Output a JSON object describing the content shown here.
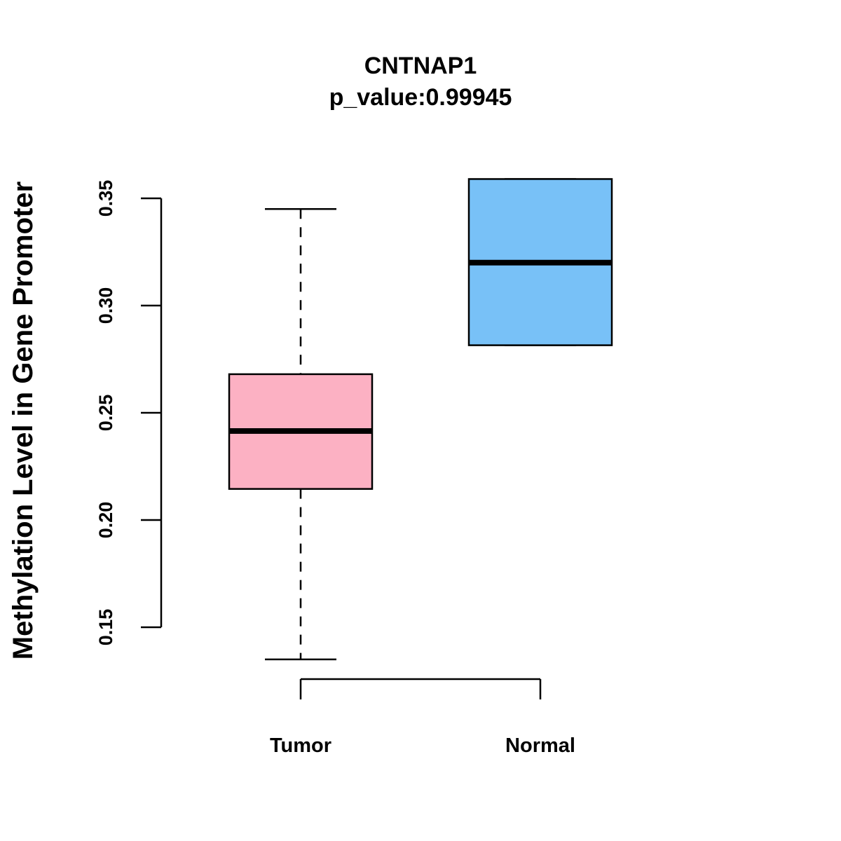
{
  "chart_data": {
    "type": "boxplot",
    "title": "CNTNAP1",
    "subtitle": "p_value:0.99945",
    "ylabel": "Methylation Level in Gene Promoter",
    "xlabel": "",
    "yticks": [
      "0.15",
      "0.20",
      "0.25",
      "0.30",
      "0.35"
    ],
    "ytick_values": [
      0.15,
      0.2,
      0.25,
      0.3,
      0.35
    ],
    "ylim": [
      0.15,
      0.35
    ],
    "series": [
      {
        "name": "Tumor",
        "color": "#fcb1c3",
        "lower_whisker": 0.135,
        "q1": 0.2145,
        "median": 0.2415,
        "q3": 0.268,
        "upper_whisker": 0.345
      },
      {
        "name": "Normal",
        "color": "#78c1f7",
        "lower_whisker": 0.2815,
        "q1": 0.2815,
        "median": 0.32,
        "q3": 0.359,
        "upper_whisker": 0.359
      }
    ]
  }
}
